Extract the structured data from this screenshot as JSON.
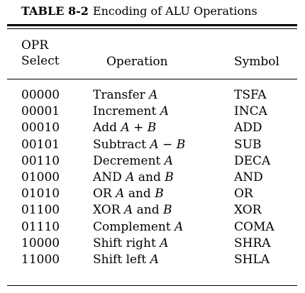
{
  "caption": {
    "number": "TABLE 8-2",
    "title": "Encoding of ALU Operations"
  },
  "headers": {
    "opr_select": "OPR Select",
    "operation": "Operation",
    "symbol": "Symbol"
  },
  "rows": [
    {
      "code": "00000",
      "operation": "Transfer A",
      "symbol": "TSFA"
    },
    {
      "code": "00001",
      "operation": "Increment A",
      "symbol": "INCA"
    },
    {
      "code": "00010",
      "operation": "Add A + B",
      "symbol": "ADD"
    },
    {
      "code": "00101",
      "operation": "Subtract A − B",
      "symbol": "SUB"
    },
    {
      "code": "00110",
      "operation": "Decrement A",
      "symbol": "DECA"
    },
    {
      "code": "01000",
      "operation": "AND A and B",
      "symbol": "AND"
    },
    {
      "code": "01010",
      "operation": "OR A and B",
      "symbol": "OR"
    },
    {
      "code": "01100",
      "operation": "XOR A and B",
      "symbol": "XOR"
    },
    {
      "code": "01110",
      "operation": "Complement A",
      "symbol": "COMA"
    },
    {
      "code": "10000",
      "operation": "Shift right A",
      "symbol": "SHRA"
    },
    {
      "code": "11000",
      "operation": "Shift left A",
      "symbol": "SHLA"
    }
  ]
}
